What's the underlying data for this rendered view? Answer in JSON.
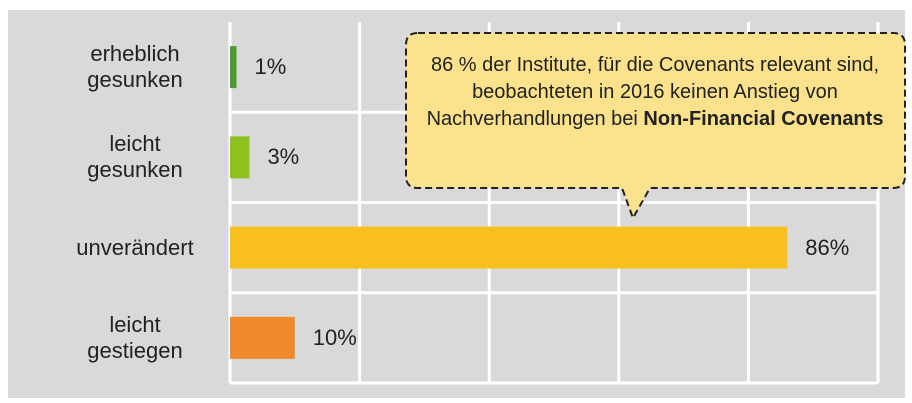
{
  "chart_data": {
    "type": "bar",
    "orientation": "horizontal",
    "categories": [
      "erheblich gesunken",
      "leicht gesunken",
      "unverändert",
      "leicht gestiegen"
    ],
    "values": [
      1,
      3,
      86,
      10
    ],
    "value_labels": [
      "1%",
      "3%",
      "86%",
      "10%"
    ],
    "colors": [
      "#4f9a2c",
      "#8dc21f",
      "#f9bf1e",
      "#f08a2c"
    ],
    "xlim": [
      0,
      100
    ],
    "xticks": [
      0,
      20,
      40,
      60,
      80,
      100
    ],
    "grid": true,
    "annotation": {
      "text": "86 % der Institute, für die Covenants relevant sind, beobachteten in 2016 keinen Anstieg von Nachverhandlungen bei",
      "bold": "Non-Financial Covenants"
    }
  }
}
